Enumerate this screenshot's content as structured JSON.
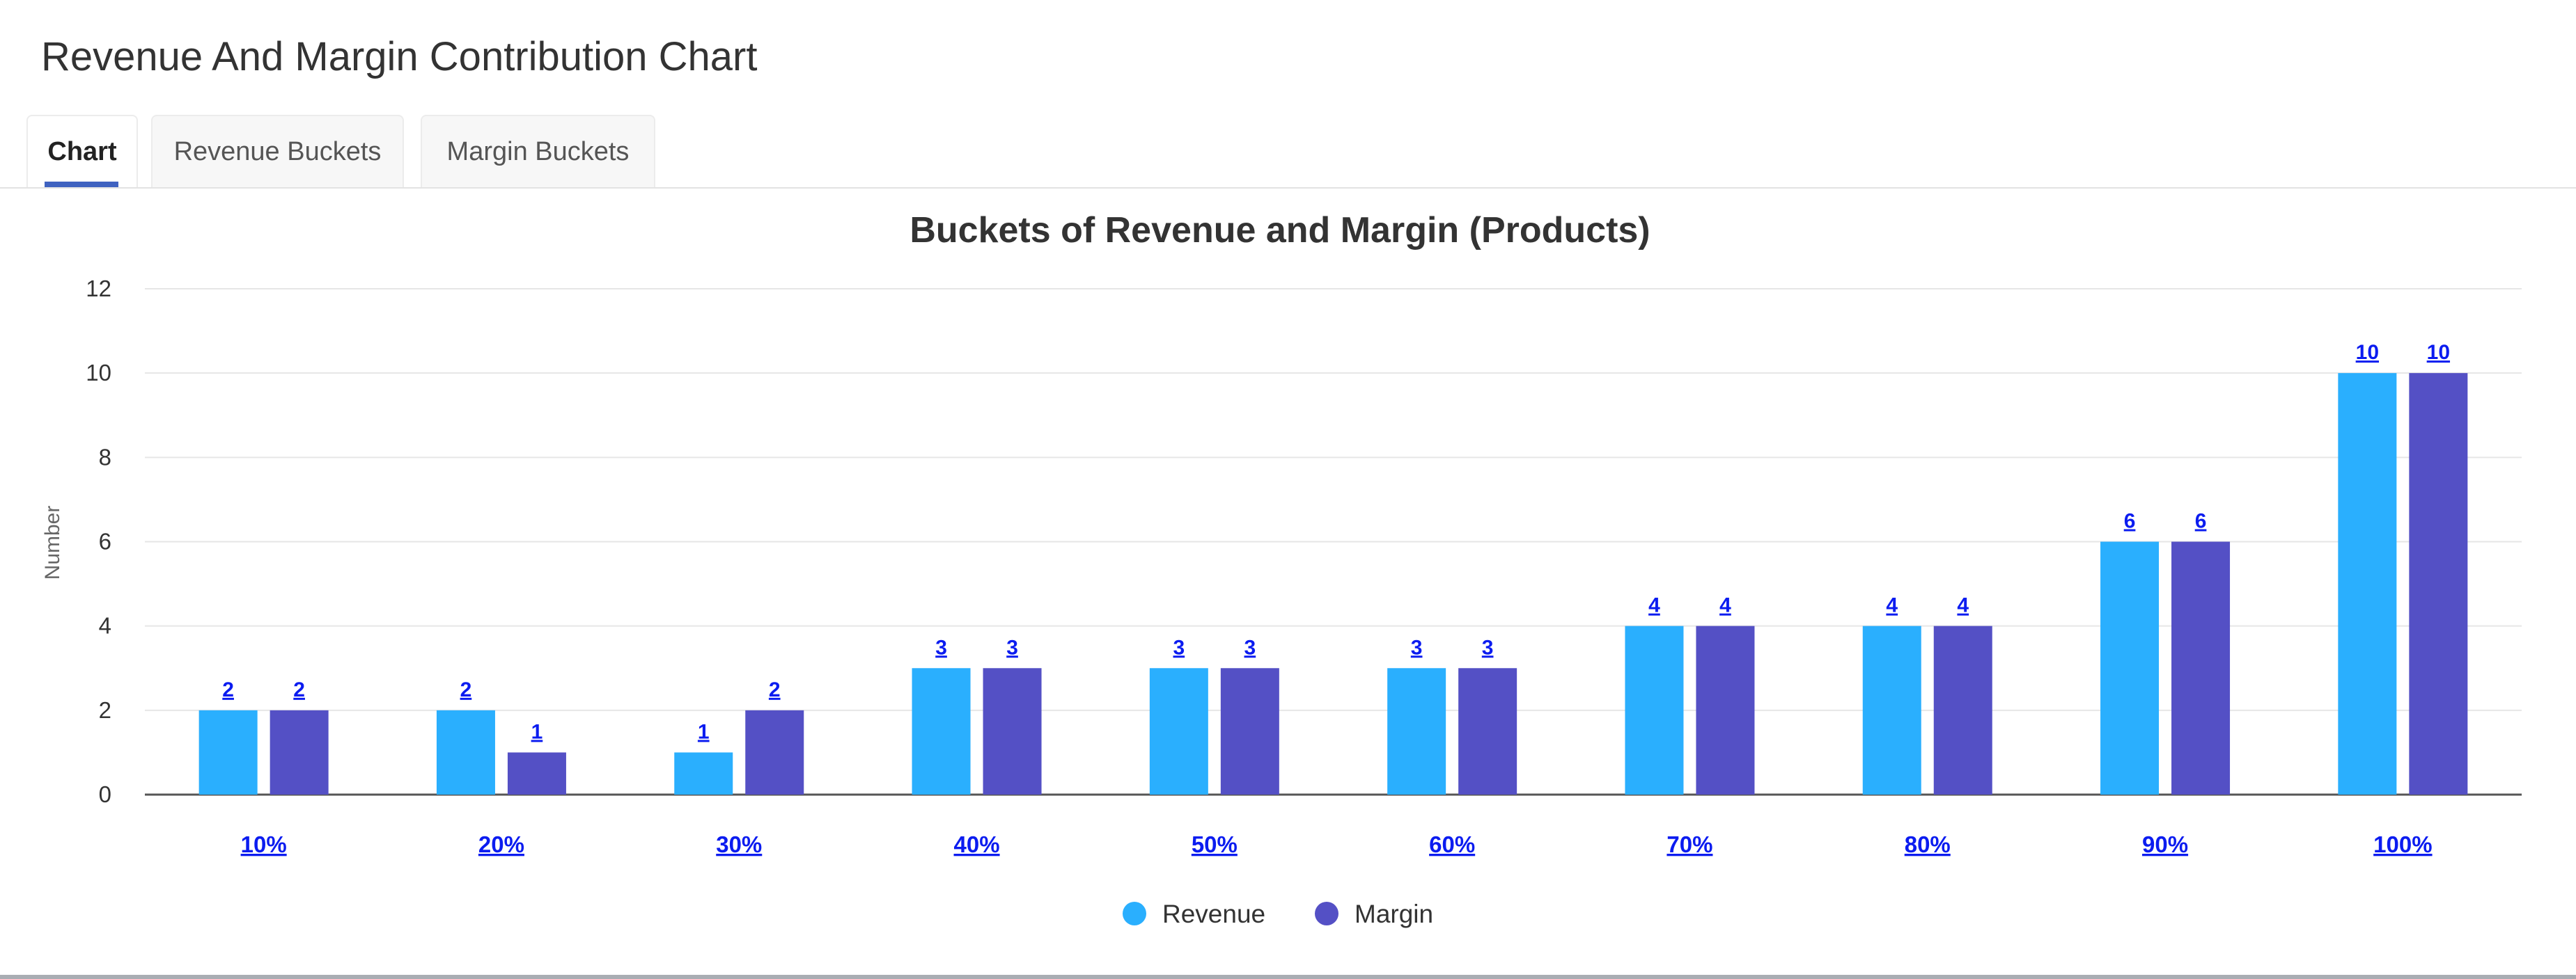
{
  "header": {
    "title": "Revenue And Margin Contribution Chart"
  },
  "tabs": [
    {
      "label": "Chart",
      "active": true
    },
    {
      "label": "Revenue Buckets",
      "active": false
    },
    {
      "label": "Margin Buckets",
      "active": false
    }
  ],
  "colors": {
    "revenue": "#2aaffe",
    "margin": "#5450c5",
    "link": "#0b1cf0",
    "accent": "#3f62c0"
  },
  "chart_data": {
    "type": "bar",
    "title": "Buckets of Revenue and Margin (Products)",
    "xlabel": "",
    "ylabel": "Number",
    "ylim": [
      0,
      12
    ],
    "yticks": [
      0,
      2,
      4,
      6,
      8,
      10,
      12
    ],
    "grid": true,
    "legend_position": "bottom",
    "categories": [
      "10%",
      "20%",
      "30%",
      "40%",
      "50%",
      "60%",
      "70%",
      "80%",
      "90%",
      "100%"
    ],
    "series": [
      {
        "name": "Revenue",
        "values": [
          2,
          2,
          1,
          3,
          3,
          3,
          4,
          4,
          6,
          10
        ]
      },
      {
        "name": "Margin",
        "values": [
          2,
          1,
          2,
          3,
          3,
          3,
          4,
          4,
          6,
          10
        ]
      }
    ]
  }
}
